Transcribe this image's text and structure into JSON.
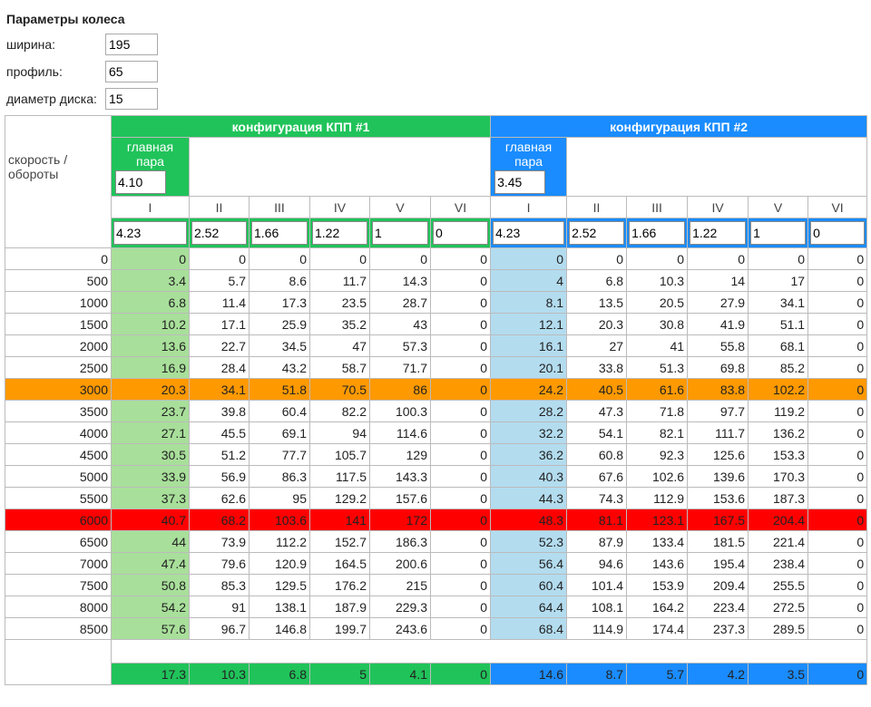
{
  "header": {
    "title": "Параметры колеса"
  },
  "params": [
    {
      "label": "ширина:",
      "value": "195"
    },
    {
      "label": "профиль:",
      "value": "65"
    },
    {
      "label": "диаметр диска:",
      "value": "15"
    }
  ],
  "table": {
    "corner_label": "скорость / обороты",
    "configs": [
      {
        "title": "конфигурация КПП #1",
        "color": "#20c35a",
        "light": "#a8df9a",
        "main_pair_label": "главная пара",
        "main_pair": "4.10",
        "gears": [
          "I",
          "II",
          "III",
          "IV",
          "V",
          "VI"
        ],
        "ratios": [
          "4.23",
          "2.52",
          "1.66",
          "1.22",
          "1",
          "0"
        ]
      },
      {
        "title": "конфигурация КПП #2",
        "color": "#1a8cff",
        "light": "#b3dcef",
        "main_pair_label": "главная пара",
        "main_pair": "3.45",
        "gears": [
          "I",
          "II",
          "III",
          "IV",
          "V",
          "VI"
        ],
        "ratios": [
          "4.23",
          "2.52",
          "1.66",
          "1.22",
          "1",
          "0"
        ]
      }
    ],
    "rows": [
      {
        "rpm": 0,
        "values": [
          [
            0,
            0,
            0,
            0,
            0,
            0
          ],
          [
            0,
            0,
            0,
            0,
            0,
            0
          ]
        ]
      },
      {
        "rpm": 500,
        "values": [
          [
            3.4,
            5.7,
            8.6,
            11.7,
            14.3,
            0
          ],
          [
            4,
            6.8,
            10.3,
            14,
            17,
            0
          ]
        ]
      },
      {
        "rpm": 1000,
        "values": [
          [
            6.8,
            11.4,
            17.3,
            23.5,
            28.7,
            0
          ],
          [
            8.1,
            13.5,
            20.5,
            27.9,
            34.1,
            0
          ]
        ]
      },
      {
        "rpm": 1500,
        "values": [
          [
            10.2,
            17.1,
            25.9,
            35.2,
            43,
            0
          ],
          [
            12.1,
            20.3,
            30.8,
            41.9,
            51.1,
            0
          ]
        ]
      },
      {
        "rpm": 2000,
        "values": [
          [
            13.6,
            22.7,
            34.5,
            47,
            57.3,
            0
          ],
          [
            16.1,
            27,
            41,
            55.8,
            68.1,
            0
          ]
        ]
      },
      {
        "rpm": 2500,
        "values": [
          [
            16.9,
            28.4,
            43.2,
            58.7,
            71.7,
            0
          ],
          [
            20.1,
            33.8,
            51.3,
            69.8,
            85.2,
            0
          ]
        ]
      },
      {
        "rpm": 3000,
        "values": [
          [
            20.3,
            34.1,
            51.8,
            70.5,
            86,
            0
          ],
          [
            24.2,
            40.5,
            61.6,
            83.8,
            102.2,
            0
          ]
        ],
        "highlight": "#ff9900"
      },
      {
        "rpm": 3500,
        "values": [
          [
            23.7,
            39.8,
            60.4,
            82.2,
            100.3,
            0
          ],
          [
            28.2,
            47.3,
            71.8,
            97.7,
            119.2,
            0
          ]
        ]
      },
      {
        "rpm": 4000,
        "values": [
          [
            27.1,
            45.5,
            69.1,
            94,
            114.6,
            0
          ],
          [
            32.2,
            54.1,
            82.1,
            111.7,
            136.2,
            0
          ]
        ]
      },
      {
        "rpm": 4500,
        "values": [
          [
            30.5,
            51.2,
            77.7,
            105.7,
            129,
            0
          ],
          [
            36.2,
            60.8,
            92.3,
            125.6,
            153.3,
            0
          ]
        ]
      },
      {
        "rpm": 5000,
        "values": [
          [
            33.9,
            56.9,
            86.3,
            117.5,
            143.3,
            0
          ],
          [
            40.3,
            67.6,
            102.6,
            139.6,
            170.3,
            0
          ]
        ]
      },
      {
        "rpm": 5500,
        "values": [
          [
            37.3,
            62.6,
            95,
            129.2,
            157.6,
            0
          ],
          [
            44.3,
            74.3,
            112.9,
            153.6,
            187.3,
            0
          ]
        ]
      },
      {
        "rpm": 6000,
        "values": [
          [
            40.7,
            68.2,
            103.6,
            141,
            172,
            0
          ],
          [
            48.3,
            81.1,
            123.1,
            167.5,
            204.4,
            0
          ]
        ],
        "highlight": "#ff0000"
      },
      {
        "rpm": 6500,
        "values": [
          [
            44,
            73.9,
            112.2,
            152.7,
            186.3,
            0
          ],
          [
            52.3,
            87.9,
            133.4,
            181.5,
            221.4,
            0
          ]
        ]
      },
      {
        "rpm": 7000,
        "values": [
          [
            47.4,
            79.6,
            120.9,
            164.5,
            200.6,
            0
          ],
          [
            56.4,
            94.6,
            143.6,
            195.4,
            238.4,
            0
          ]
        ]
      },
      {
        "rpm": 7500,
        "values": [
          [
            50.8,
            85.3,
            129.5,
            176.2,
            215,
            0
          ],
          [
            60.4,
            101.4,
            153.9,
            209.4,
            255.5,
            0
          ]
        ]
      },
      {
        "rpm": 8000,
        "values": [
          [
            54.2,
            91,
            138.1,
            187.9,
            229.3,
            0
          ],
          [
            64.4,
            108.1,
            164.2,
            223.4,
            272.5,
            0
          ]
        ]
      },
      {
        "rpm": 8500,
        "values": [
          [
            57.6,
            96.7,
            146.8,
            199.7,
            243.6,
            0
          ],
          [
            68.4,
            114.9,
            174.4,
            237.3,
            289.5,
            0
          ]
        ]
      }
    ],
    "totals": [
      [
        17.3,
        10.3,
        6.8,
        5,
        4.1,
        0
      ],
      [
        14.6,
        8.7,
        5.7,
        4.2,
        3.5,
        0
      ]
    ]
  }
}
